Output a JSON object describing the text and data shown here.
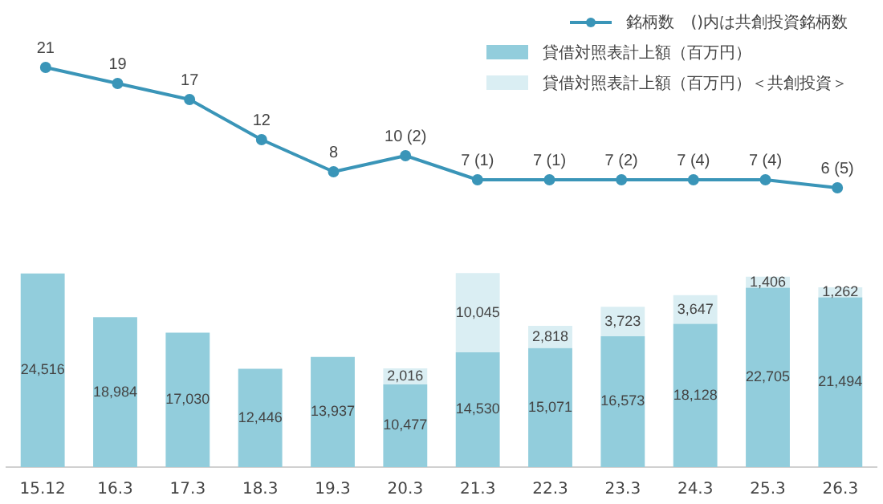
{
  "chart_data": [
    {
      "type": "line",
      "tick_labels": false,
      "grid": false,
      "legend": "top right",
      "marker": "circle",
      "categories": [
        "15.12",
        "16.3",
        "17.3",
        "18.3",
        "19.3",
        "20.3",
        "21.3",
        "22.3",
        "23.3",
        "24.3",
        "25.3",
        "26.3"
      ],
      "series": [
        {
          "name": "銘柄数　()内は共創投資銘柄数",
          "color": "#3a95b8",
          "values": [
            21,
            19,
            17,
            12,
            8,
            10,
            7,
            7,
            7,
            7,
            7,
            6
          ],
          "value_labels": [
            "21",
            "19",
            "17",
            "12",
            "8",
            "10 (2)",
            "7 (1)",
            "7 (1)",
            "7 (2)",
            "7 (4)",
            "7 (4)",
            "6 (5)"
          ]
        }
      ]
    },
    {
      "type": "bar",
      "stacked": true,
      "tick_labels": "x",
      "grid": false,
      "legend": "top right",
      "categories": [
        "15.12",
        "16.3",
        "17.3",
        "18.3",
        "19.3",
        "20.3",
        "21.3",
        "22.3",
        "23.3",
        "24.3",
        "25.3",
        "26.3"
      ],
      "series": [
        {
          "name": "貸借対照表計上額（百万円）",
          "color": "#92cddc",
          "values": [
            24516,
            18984,
            17030,
            12446,
            13937,
            10477,
            14530,
            15071,
            16573,
            18128,
            22705,
            21494
          ],
          "value_labels": [
            "24,516",
            "18,984",
            "17,030",
            "12,446",
            "13,937",
            "10,477",
            "14,530",
            "15,071",
            "16,573",
            "18,128",
            "22,705",
            "21,494"
          ]
        },
        {
          "name": "貸借対照表計上額（百万円）＜共創投資＞",
          "color": "#daeef3",
          "values": [
            null,
            null,
            null,
            null,
            null,
            2016,
            10045,
            2818,
            3723,
            3647,
            1406,
            1262
          ],
          "value_labels": [
            null,
            null,
            null,
            null,
            null,
            "2,016",
            "10,045",
            "2,818",
            "3,723",
            "3,647",
            "1,406",
            "1,262"
          ]
        }
      ]
    }
  ]
}
